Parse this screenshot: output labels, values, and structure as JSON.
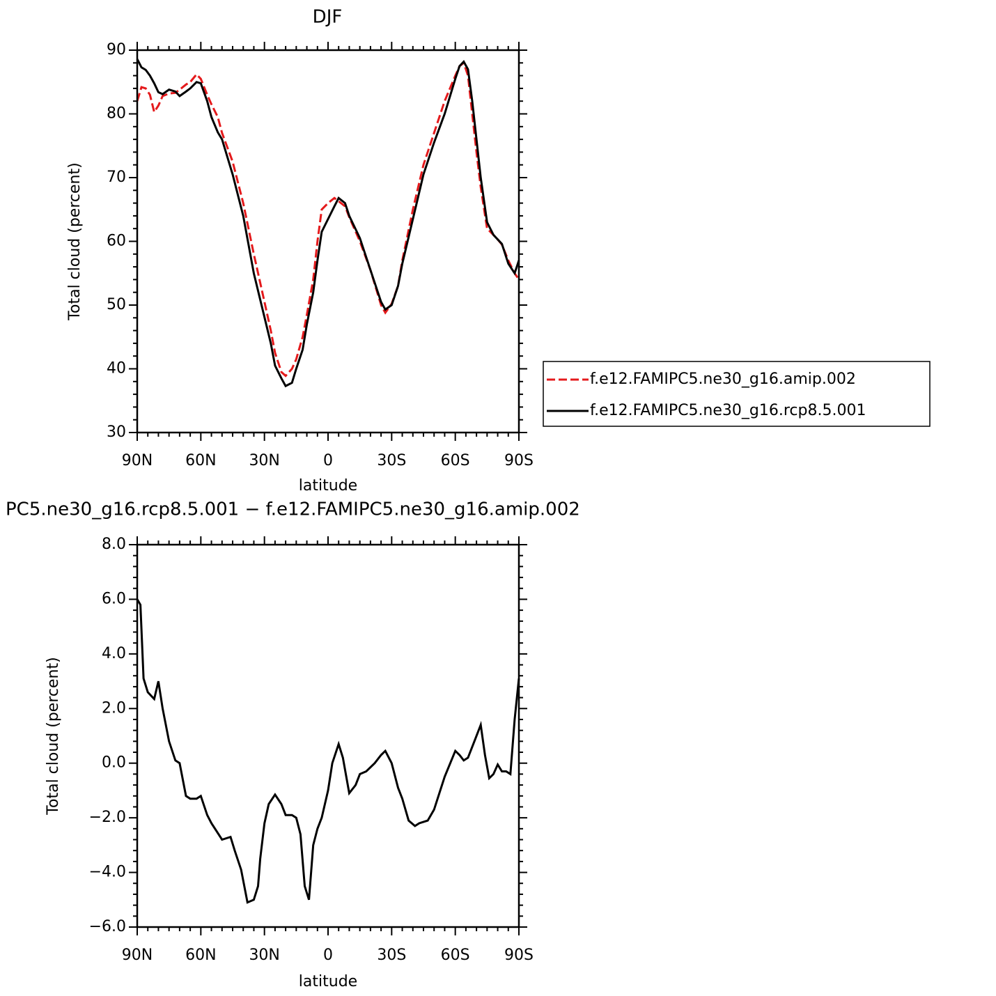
{
  "chart_data": [
    {
      "type": "line",
      "title": "DJF",
      "xlabel": "latitude",
      "ylabel": "Total cloud (percent)",
      "x": [
        90,
        88,
        86,
        84,
        82,
        80,
        78,
        75,
        72,
        70,
        67,
        65,
        62,
        60,
        57,
        55,
        52,
        50,
        45,
        40,
        35,
        30,
        27,
        25,
        22,
        20,
        17,
        15,
        12,
        10,
        7,
        5,
        3,
        0,
        -3,
        -5,
        -8,
        -10,
        -15,
        -20,
        -25,
        -27,
        -30,
        -33,
        -35,
        -40,
        -45,
        -50,
        -55,
        -60,
        -62,
        -64,
        -66,
        -68,
        -70,
        -72,
        -75,
        -78,
        -80,
        -82,
        -85,
        -88,
        -90
      ],
      "series": [
        {
          "name": "f.e12.FAMIPC5.ne30_g16.amip.002",
          "color": "#e41a1c",
          "linestyle": "dashed",
          "values": [
            82,
            84.2,
            84,
            83,
            80.3,
            81.3,
            82.8,
            83.2,
            83.3,
            83.8,
            84.6,
            85,
            86.2,
            85.5,
            83,
            81.5,
            79.5,
            77,
            72.5,
            66,
            58,
            50.5,
            46,
            42.5,
            39.5,
            38.9,
            40,
            41.5,
            45,
            48.5,
            54,
            60,
            65,
            66,
            66.8,
            66.3,
            65.5,
            63.8,
            60,
            55.5,
            50,
            48.8,
            50.2,
            53,
            57,
            65,
            72,
            77,
            82,
            86,
            87.5,
            88,
            86,
            80,
            74,
            68.5,
            62,
            61,
            60.3,
            59.5,
            57,
            55,
            54
          ]
        },
        {
          "name": "f.e12.FAMIPC5.ne30_g16.rcp8.5.001",
          "color": "#000000",
          "linestyle": "solid",
          "values": [
            88.6,
            87.3,
            86.9,
            86,
            84.8,
            83.4,
            83.1,
            83.8,
            83.5,
            82.8,
            83.5,
            84,
            85,
            84.8,
            82,
            79.5,
            77.1,
            76,
            70.5,
            64,
            55,
            48.1,
            44,
            40.5,
            38.5,
            37.3,
            37.8,
            40,
            43,
            47,
            52,
            57,
            61.5,
            63.5,
            65.5,
            66.8,
            66,
            64,
            60.5,
            55.5,
            50.5,
            49.3,
            50,
            53,
            56.5,
            63.5,
            70.5,
            75.5,
            80,
            85.5,
            87.5,
            88.2,
            87,
            82,
            76,
            70,
            63,
            61,
            60.3,
            59.6,
            56.5,
            55,
            57
          ]
        }
      ],
      "xlim": [
        90,
        -90
      ],
      "xticks": [
        {
          "value": 90,
          "label": "90N"
        },
        {
          "value": 60,
          "label": "60N"
        },
        {
          "value": 30,
          "label": "30N"
        },
        0,
        {
          "value": -30,
          "label": "30S"
        },
        {
          "value": -60,
          "label": "60S"
        },
        {
          "value": -90,
          "label": "90S"
        }
      ],
      "ylim": [
        30,
        90
      ],
      "yticks": [
        30,
        40,
        50,
        60,
        70,
        80,
        90
      ],
      "legend": "right"
    },
    {
      "type": "line",
      "title": "PC5.ne30_g16.rcp8.5.001 − f.e12.FAMIPC5.ne30_g16.amip.002",
      "xlabel": "latitude",
      "ylabel": "Total cloud (percent)",
      "x": [
        90,
        88.5,
        87,
        85,
        82,
        80,
        78,
        75,
        72,
        70,
        67,
        65,
        62,
        60,
        57,
        55,
        50,
        46,
        44,
        41,
        38,
        35,
        33,
        32,
        30,
        28,
        25,
        22,
        20,
        17,
        15,
        13,
        11,
        9,
        7,
        5,
        3,
        0,
        -2,
        -5,
        -7,
        -10,
        -13,
        -15,
        -18,
        -22,
        -25,
        -27,
        -30,
        -33,
        -35,
        -38,
        -41,
        -43,
        -47,
        -50,
        -55,
        -60,
        -62,
        -64,
        -66,
        -69,
        -72,
        -74,
        -76,
        -78,
        -80,
        -82,
        -84,
        -86,
        -88,
        -90
      ],
      "series": [
        {
          "color": "#000000",
          "linestyle": "solid",
          "values": [
            6.0,
            5.8,
            3.1,
            2.6,
            2.35,
            3.0,
            2.0,
            0.8,
            0.1,
            0.0,
            -1.2,
            -1.3,
            -1.3,
            -1.2,
            -1.9,
            -2.2,
            -2.8,
            -2.7,
            -3.2,
            -3.9,
            -5.1,
            -5.0,
            -4.5,
            -3.5,
            -2.2,
            -1.5,
            -1.15,
            -1.5,
            -1.9,
            -1.9,
            -2.0,
            -2.6,
            -4.5,
            -5.0,
            -3.0,
            -2.4,
            -2.0,
            -1.0,
            0.0,
            0.7,
            0.2,
            -1.1,
            -0.8,
            -0.4,
            -0.3,
            0.0,
            0.3,
            0.45,
            0.0,
            -0.9,
            -1.3,
            -2.1,
            -2.3,
            -2.2,
            -2.1,
            -1.7,
            -0.5,
            0.45,
            0.3,
            0.1,
            0.2,
            0.8,
            1.4,
            0.3,
            -0.55,
            -0.4,
            -0.05,
            -0.3,
            -0.3,
            -0.4,
            1.6,
            3.1
          ]
        }
      ],
      "xlim": [
        90,
        -90
      ],
      "xticks": [
        {
          "value": 90,
          "label": "90N"
        },
        {
          "value": 60,
          "label": "60N"
        },
        {
          "value": 30,
          "label": "30N"
        },
        0,
        {
          "value": -30,
          "label": "30S"
        },
        {
          "value": -60,
          "label": "60S"
        },
        {
          "value": -90,
          "label": "90S"
        }
      ],
      "ylim": [
        -6,
        8
      ],
      "yticks": [
        {
          "value": -6,
          "label": "−6.0"
        },
        {
          "value": -4,
          "label": "−4.0"
        },
        {
          "value": -2,
          "label": "−2.0"
        },
        {
          "value": 0,
          "label": "0.0"
        },
        {
          "value": 2,
          "label": "2.0"
        },
        {
          "value": 4,
          "label": "4.0"
        },
        {
          "value": 6,
          "label": "6.0"
        },
        {
          "value": 8,
          "label": "8.0"
        }
      ]
    }
  ]
}
